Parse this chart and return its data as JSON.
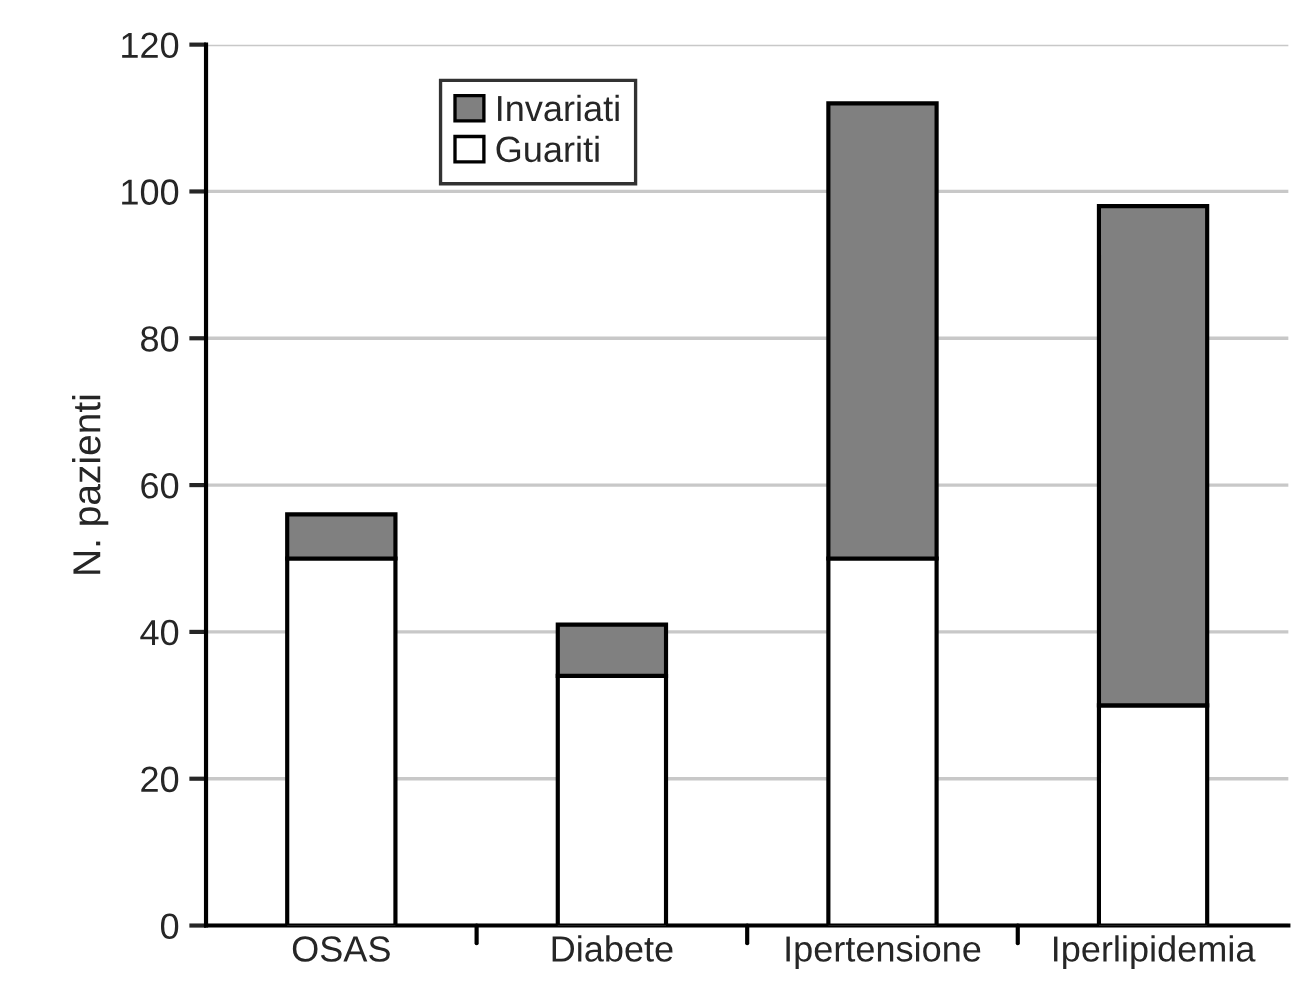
{
  "chart_data": {
    "type": "bar",
    "stacked": true,
    "ylabel": "N. pazienti",
    "categories": [
      "OSAS",
      "Diabete",
      "Ipertensione",
      "Iperlipidemia"
    ],
    "series": [
      {
        "name": "Guariti",
        "color": "#ffffff",
        "values": [
          50,
          34,
          50,
          30
        ]
      },
      {
        "name": "Invariati",
        "color": "#808080",
        "values": [
          6,
          7,
          62,
          68
        ]
      }
    ],
    "ylim": [
      0,
      120
    ],
    "yticks": [
      0,
      20,
      40,
      60,
      80,
      100,
      120
    ],
    "grid": "y",
    "legend": "top left"
  }
}
